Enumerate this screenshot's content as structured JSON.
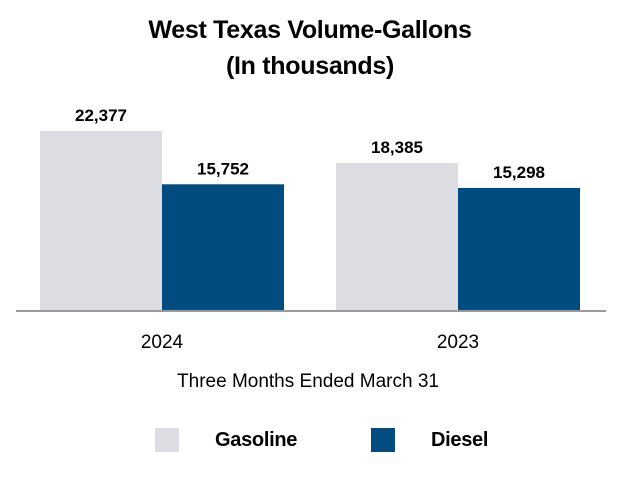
{
  "chart_data": {
    "type": "bar",
    "title": "West Texas Volume-Gallons",
    "subtitle": "(In thousands)",
    "xlabel": "Three Months Ended March 31",
    "ylabel": "",
    "categories": [
      "2024",
      "2023"
    ],
    "series": [
      {
        "name": "Gasoline",
        "values": [
          22377,
          18385
        ],
        "labels": [
          "22,377",
          "18,385"
        ],
        "color": "#dcdde2"
      },
      {
        "name": "Diesel",
        "values": [
          15752,
          15298
        ],
        "labels": [
          "15,752",
          "15,298"
        ],
        "color": "#004b80"
      }
    ],
    "ylim": [
      0,
      22377
    ],
    "grid": false,
    "legend_position": "bottom"
  },
  "colors": {
    "axis": "#9a9a9a"
  }
}
